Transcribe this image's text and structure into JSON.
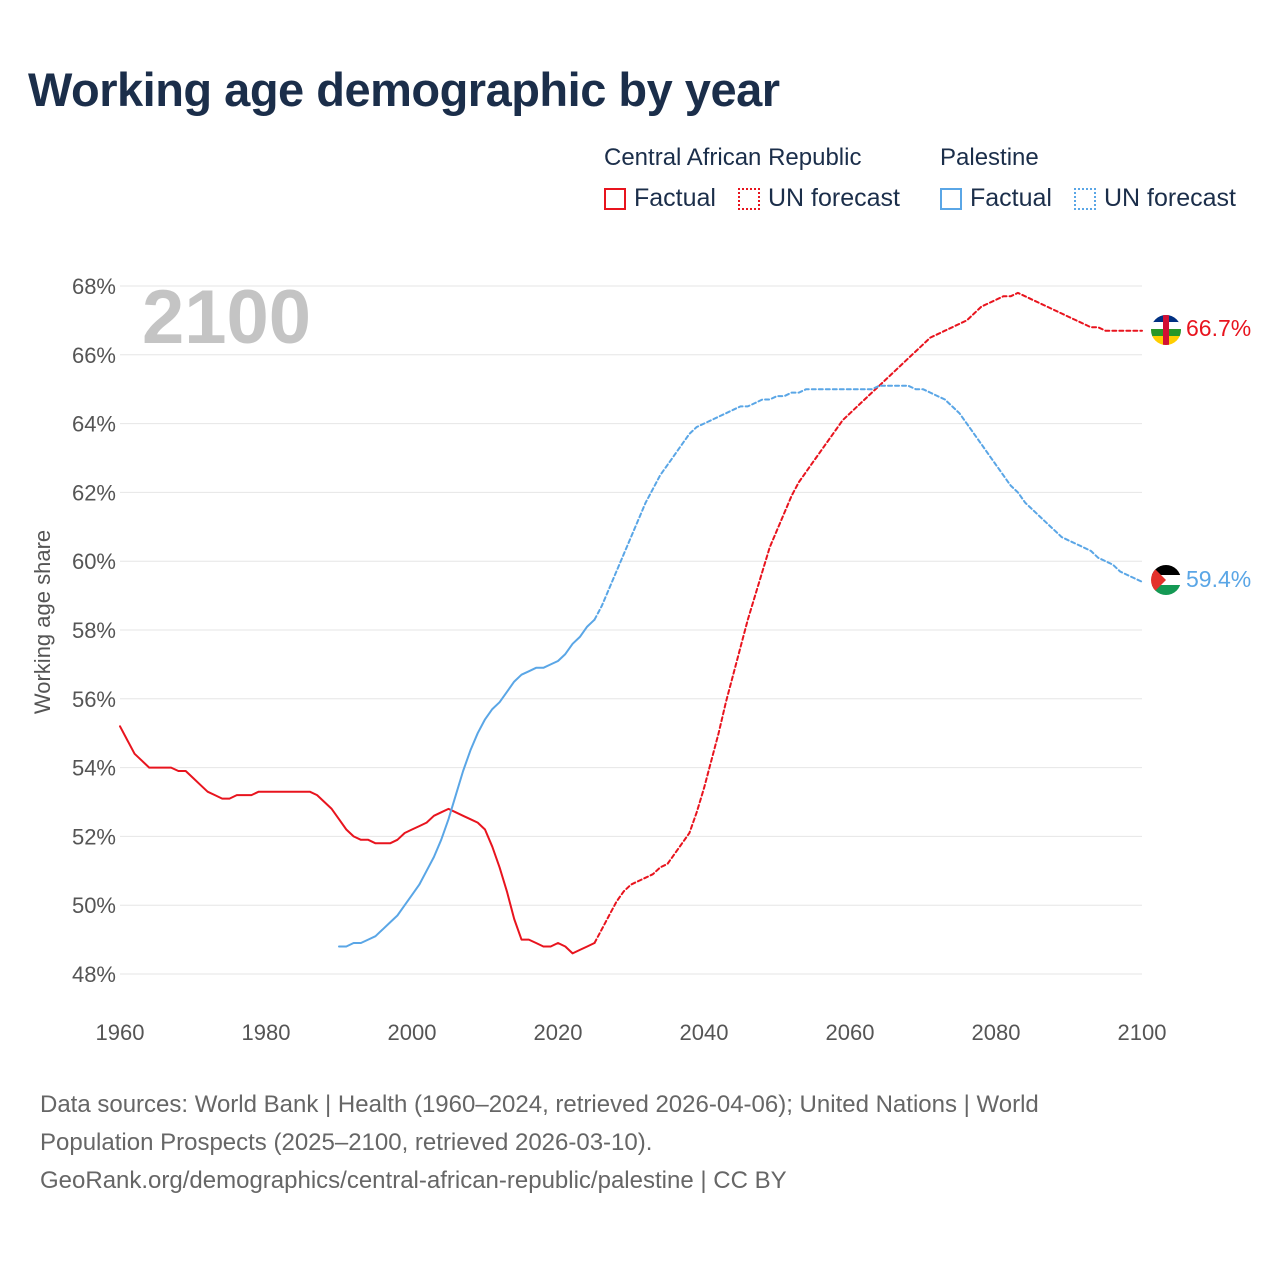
{
  "title": "Working age demographic by year",
  "legend": {
    "groups": [
      {
        "name": "Central African Republic",
        "factual": "Factual",
        "forecast": "UN forecast",
        "color": "#e8141e"
      },
      {
        "name": "Palestine",
        "factual": "Factual",
        "forecast": "UN forecast",
        "color": "#5aa6e6"
      }
    ]
  },
  "chart_data": {
    "type": "line",
    "year_label": "2100",
    "ylabel": "Working age share",
    "xlim": [
      1960,
      2100
    ],
    "ylim": [
      47.5,
      68
    ],
    "x_ticks": [
      "1960",
      "1980",
      "2000",
      "2020",
      "2040",
      "2060",
      "2080",
      "2100"
    ],
    "y_ticks": [
      "48%",
      "50%",
      "52%",
      "54%",
      "56%",
      "58%",
      "60%",
      "62%",
      "64%",
      "66%",
      "68%"
    ],
    "series": [
      {
        "name": "Central African Republic",
        "color": "#e8141e",
        "end_label": "66.7%",
        "flag_icon": "central-african-republic-flag-icon",
        "factual": {
          "x": [
            1960,
            1961,
            1962,
            1963,
            1964,
            1965,
            1966,
            1967,
            1968,
            1969,
            1970,
            1971,
            1972,
            1973,
            1974,
            1975,
            1976,
            1977,
            1978,
            1979,
            1980,
            1981,
            1982,
            1983,
            1984,
            1985,
            1986,
            1987,
            1988,
            1989,
            1990,
            1991,
            1992,
            1993,
            1994,
            1995,
            1996,
            1997,
            1998,
            1999,
            2000,
            2001,
            2002,
            2003,
            2004,
            2005,
            2006,
            2007,
            2008,
            2009,
            2010,
            2011,
            2012,
            2013,
            2014,
            2015,
            2016,
            2017,
            2018,
            2019,
            2020,
            2021,
            2022,
            2023,
            2024,
            2025
          ],
          "y": [
            55.2,
            54.8,
            54.4,
            54.2,
            54.0,
            54.0,
            54.0,
            54.0,
            53.9,
            53.9,
            53.7,
            53.5,
            53.3,
            53.2,
            53.1,
            53.1,
            53.2,
            53.2,
            53.2,
            53.3,
            53.3,
            53.3,
            53.3,
            53.3,
            53.3,
            53.3,
            53.3,
            53.2,
            53.0,
            52.8,
            52.5,
            52.2,
            52.0,
            51.9,
            51.9,
            51.8,
            51.8,
            51.8,
            51.9,
            52.1,
            52.2,
            52.3,
            52.4,
            52.6,
            52.7,
            52.8,
            52.7,
            52.6,
            52.5,
            52.4,
            52.2,
            51.7,
            51.1,
            50.4,
            49.6,
            49.0,
            49.0,
            48.9,
            48.8,
            48.8,
            48.9,
            48.8,
            48.6,
            48.7,
            48.8,
            48.9
          ]
        },
        "forecast": {
          "x": [
            2025,
            2026,
            2027,
            2028,
            2029,
            2030,
            2031,
            2032,
            2033,
            2034,
            2035,
            2036,
            2037,
            2038,
            2039,
            2040,
            2041,
            2042,
            2043,
            2044,
            2045,
            2046,
            2047,
            2048,
            2049,
            2050,
            2051,
            2052,
            2053,
            2054,
            2055,
            2056,
            2057,
            2058,
            2059,
            2060,
            2061,
            2062,
            2063,
            2064,
            2065,
            2066,
            2067,
            2068,
            2069,
            2070,
            2071,
            2072,
            2073,
            2074,
            2075,
            2076,
            2077,
            2078,
            2079,
            2080,
            2081,
            2082,
            2083,
            2084,
            2085,
            2086,
            2087,
            2088,
            2089,
            2090,
            2091,
            2092,
            2093,
            2094,
            2095,
            2096,
            2097,
            2098,
            2099,
            2100
          ],
          "y": [
            48.9,
            49.3,
            49.7,
            50.1,
            50.4,
            50.6,
            50.7,
            50.8,
            50.9,
            51.1,
            51.2,
            51.5,
            51.8,
            52.1,
            52.7,
            53.4,
            54.2,
            55.0,
            55.9,
            56.7,
            57.5,
            58.3,
            59.0,
            59.7,
            60.4,
            60.9,
            61.4,
            61.9,
            62.3,
            62.6,
            62.9,
            63.2,
            63.5,
            63.8,
            64.1,
            64.3,
            64.5,
            64.7,
            64.9,
            65.1,
            65.3,
            65.5,
            65.7,
            65.9,
            66.1,
            66.3,
            66.5,
            66.6,
            66.7,
            66.8,
            66.9,
            67.0,
            67.2,
            67.4,
            67.5,
            67.6,
            67.7,
            67.7,
            67.8,
            67.7,
            67.6,
            67.5,
            67.4,
            67.3,
            67.2,
            67.1,
            67.0,
            66.9,
            66.8,
            66.8,
            66.7,
            66.7,
            66.7,
            66.7,
            66.7,
            66.7
          ]
        }
      },
      {
        "name": "Palestine",
        "color": "#5aa6e6",
        "end_label": "59.4%",
        "flag_icon": "palestine-flag-icon",
        "factual": {
          "x": [
            1990,
            1991,
            1992,
            1993,
            1994,
            1995,
            1996,
            1997,
            1998,
            1999,
            2000,
            2001,
            2002,
            2003,
            2004,
            2005,
            2006,
            2007,
            2008,
            2009,
            2010,
            2011,
            2012,
            2013,
            2014,
            2015,
            2016,
            2017,
            2018,
            2019,
            2020,
            2021,
            2022,
            2023,
            2024,
            2025
          ],
          "y": [
            48.8,
            48.8,
            48.9,
            48.9,
            49.0,
            49.1,
            49.3,
            49.5,
            49.7,
            50.0,
            50.3,
            50.6,
            51.0,
            51.4,
            51.9,
            52.5,
            53.2,
            53.9,
            54.5,
            55.0,
            55.4,
            55.7,
            55.9,
            56.2,
            56.5,
            56.7,
            56.8,
            56.9,
            56.9,
            57.0,
            57.1,
            57.3,
            57.6,
            57.8,
            58.1,
            58.3
          ]
        },
        "forecast": {
          "x": [
            2025,
            2026,
            2027,
            2028,
            2029,
            2030,
            2031,
            2032,
            2033,
            2034,
            2035,
            2036,
            2037,
            2038,
            2039,
            2040,
            2041,
            2042,
            2043,
            2044,
            2045,
            2046,
            2047,
            2048,
            2049,
            2050,
            2051,
            2052,
            2053,
            2054,
            2055,
            2056,
            2057,
            2058,
            2059,
            2060,
            2061,
            2062,
            2063,
            2064,
            2065,
            2066,
            2067,
            2068,
            2069,
            2070,
            2071,
            2072,
            2073,
            2074,
            2075,
            2076,
            2077,
            2078,
            2079,
            2080,
            2081,
            2082,
            2083,
            2084,
            2085,
            2086,
            2087,
            2088,
            2089,
            2090,
            2091,
            2092,
            2093,
            2094,
            2095,
            2096,
            2097,
            2098,
            2099,
            2100
          ],
          "y": [
            58.3,
            58.7,
            59.2,
            59.7,
            60.2,
            60.7,
            61.2,
            61.7,
            62.1,
            62.5,
            62.8,
            63.1,
            63.4,
            63.7,
            63.9,
            64.0,
            64.1,
            64.2,
            64.3,
            64.4,
            64.5,
            64.5,
            64.6,
            64.7,
            64.7,
            64.8,
            64.8,
            64.9,
            64.9,
            65.0,
            65.0,
            65.0,
            65.0,
            65.0,
            65.0,
            65.0,
            65.0,
            65.0,
            65.0,
            65.1,
            65.1,
            65.1,
            65.1,
            65.1,
            65.0,
            65.0,
            64.9,
            64.8,
            64.7,
            64.5,
            64.3,
            64.0,
            63.7,
            63.4,
            63.1,
            62.8,
            62.5,
            62.2,
            62.0,
            61.7,
            61.5,
            61.3,
            61.1,
            60.9,
            60.7,
            60.6,
            60.5,
            60.4,
            60.3,
            60.1,
            60.0,
            59.9,
            59.7,
            59.6,
            59.5,
            59.4
          ]
        }
      }
    ]
  },
  "source": {
    "line1": "Data sources: World Bank | Health (1960–2024, retrieved 2026-04-06); United Nations | World",
    "line2": "Population Prospects (2025–2100, retrieved 2026-03-10).",
    "line3": "GeoRank.org/demographics/central-african-republic/palestine | CC BY"
  }
}
